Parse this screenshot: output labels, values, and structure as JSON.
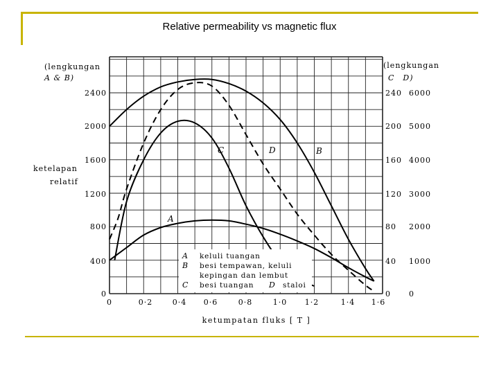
{
  "slide": {
    "title": "Relative permeability vs magnetic flux",
    "accent_color": "#c8b400"
  },
  "chart_data": {
    "type": "line",
    "grid": true,
    "x_axis": {
      "label": "ketumpatan fluks [ T ]",
      "ticks": [
        "0",
        "0·2",
        "0·4",
        "0·6",
        "0·8",
        "1·0",
        "1·2",
        "1·4",
        "1·6"
      ],
      "range": [
        0,
        1.6
      ]
    },
    "y_axis_left": {
      "label": "ketelapan relatif",
      "curves_label": "(lengkungan A & B)",
      "ticks": [
        "0",
        "400",
        "800",
        "1200",
        "1600",
        "2000",
        "2400"
      ],
      "range": [
        0,
        2400
      ]
    },
    "y_axis_right_c": {
      "curves_label": "(lengkungan C D)",
      "ticks": [
        "0",
        "40",
        "80",
        "120",
        "160",
        "200",
        "240"
      ]
    },
    "y_axis_right_d": {
      "ticks": [
        "0",
        "1000",
        "2000",
        "3000",
        "4000",
        "5000",
        "6000"
      ]
    },
    "series": [
      {
        "name": "A",
        "style": "solid",
        "points": [
          [
            0,
            400
          ],
          [
            0.1,
            550
          ],
          [
            0.2,
            700
          ],
          [
            0.3,
            790
          ],
          [
            0.4,
            840
          ],
          [
            0.5,
            870
          ],
          [
            0.6,
            880
          ],
          [
            0.7,
            870
          ],
          [
            0.8,
            830
          ],
          [
            0.9,
            780
          ],
          [
            1.0,
            710
          ],
          [
            1.1,
            630
          ],
          [
            1.2,
            540
          ],
          [
            1.3,
            430
          ],
          [
            1.4,
            310
          ],
          [
            1.5,
            200
          ],
          [
            1.55,
            150
          ]
        ]
      },
      {
        "name": "B",
        "style": "solid",
        "points": [
          [
            0,
            2000
          ],
          [
            0.1,
            2200
          ],
          [
            0.2,
            2360
          ],
          [
            0.3,
            2470
          ],
          [
            0.4,
            2530
          ],
          [
            0.5,
            2560
          ],
          [
            0.6,
            2560
          ],
          [
            0.7,
            2510
          ],
          [
            0.8,
            2420
          ],
          [
            0.9,
            2280
          ],
          [
            1.0,
            2080
          ],
          [
            1.1,
            1800
          ],
          [
            1.2,
            1450
          ],
          [
            1.3,
            1050
          ],
          [
            1.4,
            650
          ],
          [
            1.5,
            300
          ],
          [
            1.55,
            150
          ]
        ]
      },
      {
        "name": "C",
        "style": "solid",
        "points": [
          [
            0.03,
            400
          ],
          [
            0.1,
            1100
          ],
          [
            0.2,
            1600
          ],
          [
            0.3,
            1920
          ],
          [
            0.4,
            2060
          ],
          [
            0.5,
            2040
          ],
          [
            0.6,
            1860
          ],
          [
            0.7,
            1500
          ],
          [
            0.8,
            1050
          ],
          [
            0.9,
            680
          ],
          [
            1.0,
            380
          ],
          [
            1.1,
            180
          ],
          [
            1.2,
            90
          ]
        ]
      },
      {
        "name": "D",
        "style": "dashed",
        "points": [
          [
            0,
            650
          ],
          [
            0.05,
            900
          ],
          [
            0.1,
            1250
          ],
          [
            0.2,
            1800
          ],
          [
            0.3,
            2200
          ],
          [
            0.4,
            2440
          ],
          [
            0.5,
            2520
          ],
          [
            0.6,
            2480
          ],
          [
            0.7,
            2250
          ],
          [
            0.8,
            1900
          ],
          [
            0.9,
            1550
          ],
          [
            1.0,
            1250
          ],
          [
            1.1,
            950
          ],
          [
            1.2,
            700
          ],
          [
            1.3,
            470
          ],
          [
            1.4,
            280
          ],
          [
            1.5,
            100
          ],
          [
            1.55,
            30
          ]
        ]
      }
    ],
    "curve_labels": [
      "A",
      "B",
      "C",
      "D"
    ],
    "legend": {
      "rows": [
        {
          "key": "A",
          "text": "keluli tuangan"
        },
        {
          "key": "B",
          "text": "besi tempawan, keluli"
        },
        {
          "key": "",
          "text": "kepingan dan lembut"
        },
        {
          "key": "C",
          "text": "besi tuangan"
        }
      ],
      "inline_key": "D",
      "inline_text": "staloi"
    }
  }
}
